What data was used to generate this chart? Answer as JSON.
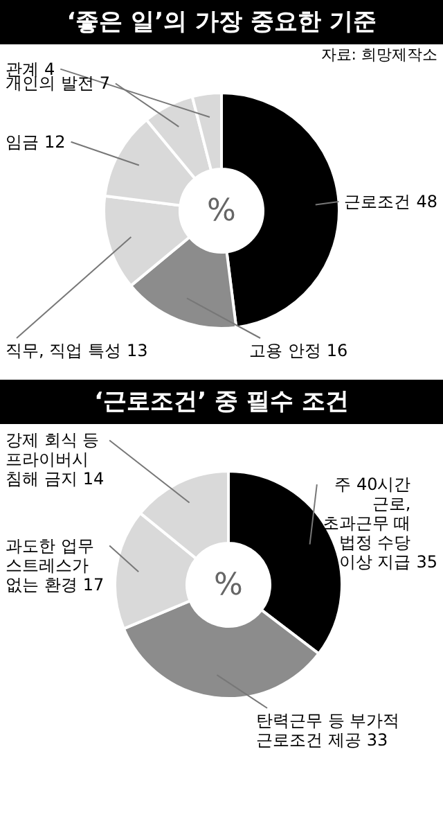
{
  "chart_data": [
    {
      "type": "donut",
      "title": "‘좋은 일’의 가장 중요한 기준",
      "categories": [
        "근로조건",
        "고용 안정",
        "직무, 직업 특성",
        "임금",
        "개인의 발전",
        "관계"
      ],
      "values": [
        48,
        16,
        13,
        12,
        7,
        4
      ],
      "colors": [
        "#000000",
        "#8c8c8c",
        "#d9d9d9",
        "#d9d9d9",
        "#d9d9d9",
        "#d9d9d9"
      ],
      "data_labels": true,
      "annotations": [
        "자료: 희망제작소",
        "%"
      ]
    },
    {
      "type": "donut",
      "title": "‘근로조건’ 중 필수 조건",
      "categories": [
        "주 40시간\n근로,\n초과근무 때\n법정 수당\n이상 지급",
        "탄력근무 등 부가적\n근로조건 제공",
        "과도한 업무\n스트레스가\n없는 환경",
        "강제 회식 등\n프라이버시\n침해 금지"
      ],
      "values": [
        35,
        33,
        17,
        14
      ],
      "colors": [
        "#000000",
        "#8c8c8c",
        "#d9d9d9",
        "#d9d9d9"
      ],
      "data_labels": true,
      "annotations": [
        "%"
      ]
    }
  ]
}
